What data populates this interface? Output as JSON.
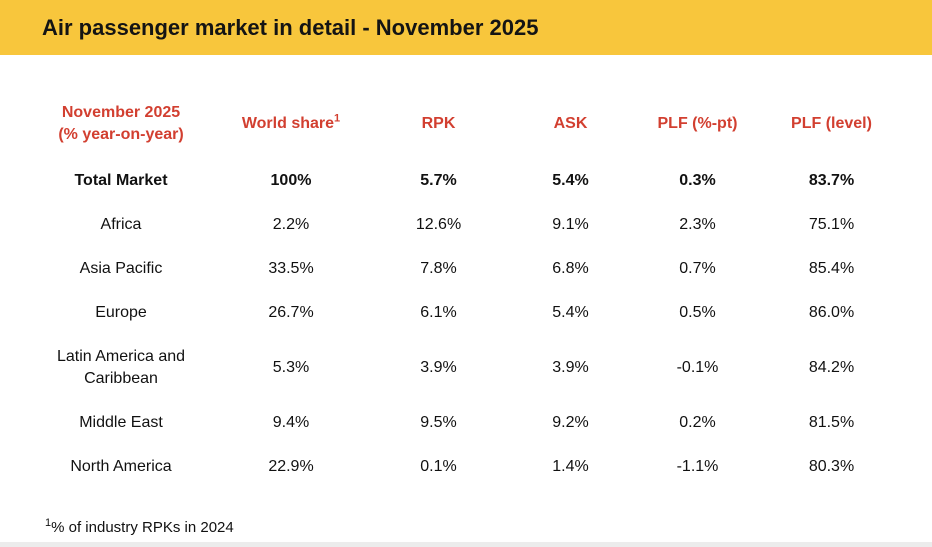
{
  "colors": {
    "titlebar_bg": "#F8C63C",
    "header_text": "#D23F30",
    "body_text": "#111111",
    "bottom_strip": "#ececec"
  },
  "title": "Air passenger market in detail - November 2025",
  "table": {
    "header": {
      "region_line1": "November 2025",
      "region_line2": "(% year-on-year)",
      "world_share": "World share",
      "world_share_sup": "1",
      "rpk": "RPK",
      "ask": "ASK",
      "plf_pt": "PLF (%-pt)",
      "plf_level": "PLF (level)"
    },
    "rows": [
      {
        "region": "Total Market",
        "world_share": "100%",
        "rpk": "5.7%",
        "ask": "5.4%",
        "plf_pt": "0.3%",
        "plf_level": "83.7%"
      },
      {
        "region": "Africa",
        "world_share": "2.2%",
        "rpk": "12.6%",
        "ask": "9.1%",
        "plf_pt": "2.3%",
        "plf_level": "75.1%"
      },
      {
        "region": "Asia Pacific",
        "world_share": "33.5%",
        "rpk": "7.8%",
        "ask": "6.8%",
        "plf_pt": "0.7%",
        "plf_level": "85.4%"
      },
      {
        "region": "Europe",
        "world_share": "26.7%",
        "rpk": "6.1%",
        "ask": "5.4%",
        "plf_pt": "0.5%",
        "plf_level": "86.0%"
      },
      {
        "region": "Latin America and Caribbean",
        "world_share": "5.3%",
        "rpk": "3.9%",
        "ask": "3.9%",
        "plf_pt": "-0.1%",
        "plf_level": "84.2%"
      },
      {
        "region": "Middle East",
        "world_share": "9.4%",
        "rpk": "9.5%",
        "ask": "9.2%",
        "plf_pt": "0.2%",
        "plf_level": "81.5%"
      },
      {
        "region": "North America",
        "world_share": "22.9%",
        "rpk": "0.1%",
        "ask": "1.4%",
        "plf_pt": "-1.1%",
        "plf_level": "80.3%"
      }
    ]
  },
  "footnote": {
    "sup": "1",
    "text": "% of industry RPKs in 2024"
  },
  "chart_data": {
    "type": "table",
    "title": "Air passenger market in detail - November 2025",
    "row_header_unit": "% year-on-year",
    "columns": [
      "World share",
      "RPK",
      "ASK",
      "PLF (%-pt)",
      "PLF (level)"
    ],
    "rows": [
      {
        "region": "Total Market",
        "world_share_pct": 100,
        "rpk_pct": 5.7,
        "ask_pct": 5.4,
        "plf_change_pt": 0.3,
        "plf_level_pct": 83.7
      },
      {
        "region": "Africa",
        "world_share_pct": 2.2,
        "rpk_pct": 12.6,
        "ask_pct": 9.1,
        "plf_change_pt": 2.3,
        "plf_level_pct": 75.1
      },
      {
        "region": "Asia Pacific",
        "world_share_pct": 33.5,
        "rpk_pct": 7.8,
        "ask_pct": 6.8,
        "plf_change_pt": 0.7,
        "plf_level_pct": 85.4
      },
      {
        "region": "Europe",
        "world_share_pct": 26.7,
        "rpk_pct": 6.1,
        "ask_pct": 5.4,
        "plf_change_pt": 0.5,
        "plf_level_pct": 86.0
      },
      {
        "region": "Latin America and Caribbean",
        "world_share_pct": 5.3,
        "rpk_pct": 3.9,
        "ask_pct": 3.9,
        "plf_change_pt": -0.1,
        "plf_level_pct": 84.2
      },
      {
        "region": "Middle East",
        "world_share_pct": 9.4,
        "rpk_pct": 9.5,
        "ask_pct": 9.2,
        "plf_change_pt": 0.2,
        "plf_level_pct": 81.5
      },
      {
        "region": "North America",
        "world_share_pct": 22.9,
        "rpk_pct": 0.1,
        "ask_pct": 1.4,
        "plf_change_pt": -1.1,
        "plf_level_pct": 80.3
      }
    ],
    "footnote": "1: % of industry RPKs in 2024"
  }
}
